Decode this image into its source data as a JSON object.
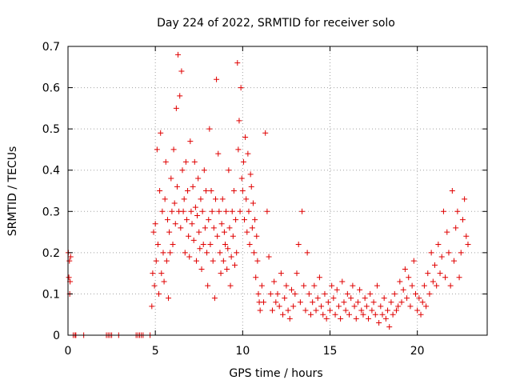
{
  "chart_data": {
    "type": "scatter",
    "title": "Day 224 of 2022, SRMTID for receiver solo",
    "xlabel": "GPS time / hours",
    "ylabel": "SRMTID / TECUs",
    "xlim": [
      0,
      24
    ],
    "ylim": [
      0,
      0.7
    ],
    "xticks": [
      0,
      5,
      10,
      15,
      20
    ],
    "xtick_labels": [
      "0",
      "5",
      "10",
      "15",
      "20"
    ],
    "yticks": [
      0,
      0.1,
      0.2,
      0.3,
      0.4,
      0.5,
      0.6,
      0.7
    ],
    "ytick_labels": [
      "0",
      "0.1",
      "0.2",
      "0.3",
      "0.4",
      "0.5",
      "0.6",
      "0.7"
    ],
    "grid": true,
    "marker": "plus",
    "color": "#e00000",
    "series": [
      {
        "name": "SRMTID",
        "x": [
          0.02,
          0.05,
          0.08,
          0.1,
          0.12,
          0.15,
          0.3,
          0.4,
          0.45,
          0.9,
          2.2,
          2.3,
          2.4,
          2.5,
          2.9,
          3.9,
          4.0,
          4.1,
          4.2,
          4.3,
          4.7,
          4.8,
          4.85,
          4.9,
          4.95,
          5.0,
          5.05,
          5.1,
          5.15,
          5.2,
          5.25,
          5.3,
          5.35,
          5.4,
          5.45,
          5.5,
          5.55,
          5.6,
          5.65,
          5.7,
          5.75,
          5.8,
          5.85,
          5.9,
          5.95,
          6.0,
          6.05,
          6.1,
          6.15,
          6.2,
          6.25,
          6.3,
          6.35,
          6.4,
          6.45,
          6.5,
          6.55,
          6.6,
          6.65,
          6.7,
          6.75,
          6.8,
          6.85,
          6.9,
          6.95,
          7.0,
          7.05,
          7.1,
          7.15,
          7.2,
          7.25,
          7.3,
          7.35,
          7.4,
          7.45,
          7.5,
          7.55,
          7.6,
          7.65,
          7.7,
          7.75,
          7.8,
          7.85,
          7.9,
          7.95,
          8.0,
          8.05,
          8.1,
          8.15,
          8.2,
          8.25,
          8.3,
          8.35,
          8.4,
          8.45,
          8.5,
          8.55,
          8.6,
          8.65,
          8.7,
          8.75,
          8.8,
          8.85,
          8.9,
          8.95,
          9.0,
          9.05,
          9.1,
          9.15,
          9.2,
          9.25,
          9.3,
          9.35,
          9.4,
          9.45,
          9.5,
          9.55,
          9.6,
          9.65,
          9.7,
          9.75,
          9.8,
          9.85,
          9.9,
          9.95,
          10.0,
          10.05,
          10.1,
          10.15,
          10.2,
          10.25,
          10.3,
          10.35,
          10.4,
          10.45,
          10.5,
          10.55,
          10.6,
          10.65,
          10.7,
          10.75,
          10.8,
          10.85,
          10.9,
          10.95,
          11.0,
          11.1,
          11.2,
          11.3,
          11.4,
          11.5,
          11.6,
          11.7,
          11.8,
          11.9,
          12.0,
          12.1,
          12.2,
          12.3,
          12.4,
          12.5,
          12.6,
          12.7,
          12.8,
          12.9,
          13.0,
          13.1,
          13.2,
          13.3,
          13.4,
          13.5,
          13.6,
          13.7,
          13.8,
          13.9,
          14.0,
          14.1,
          14.2,
          14.3,
          14.4,
          14.5,
          14.6,
          14.7,
          14.8,
          14.9,
          15.0,
          15.1,
          15.2,
          15.3,
          15.4,
          15.5,
          15.6,
          15.7,
          15.8,
          15.9,
          16.0,
          16.1,
          16.2,
          16.3,
          16.4,
          16.5,
          16.6,
          16.7,
          16.8,
          16.9,
          17.0,
          17.1,
          17.2,
          17.3,
          17.4,
          17.5,
          17.6,
          17.7,
          17.8,
          17.9,
          18.0,
          18.1,
          18.2,
          18.3,
          18.4,
          18.5,
          18.6,
          18.7,
          18.8,
          18.9,
          19.0,
          19.1,
          19.2,
          19.3,
          19.4,
          19.5,
          19.6,
          19.7,
          19.8,
          19.9,
          20.0,
          20.1,
          20.2,
          20.3,
          20.4,
          20.5,
          20.6,
          20.7,
          20.8,
          20.9,
          21.0,
          21.1,
          21.2,
          21.3,
          21.4,
          21.5,
          21.6,
          21.7,
          21.8,
          21.9,
          22.0,
          22.1,
          22.2,
          22.3,
          22.4,
          22.5,
          22.6,
          22.7,
          22.8,
          22.9
        ],
        "y": [
          0.2,
          0.14,
          0.18,
          0.1,
          0.13,
          0.19,
          0.0,
          0.0,
          0.0,
          0.0,
          0.0,
          0.0,
          0.0,
          0.0,
          0.0,
          0.0,
          0.0,
          0.0,
          0.0,
          0.0,
          0.0,
          0.07,
          0.15,
          0.25,
          0.12,
          0.27,
          0.18,
          0.45,
          0.22,
          0.1,
          0.35,
          0.49,
          0.15,
          0.3,
          0.2,
          0.13,
          0.33,
          0.42,
          0.18,
          0.28,
          0.09,
          0.25,
          0.2,
          0.38,
          0.3,
          0.22,
          0.45,
          0.32,
          0.27,
          0.55,
          0.36,
          0.68,
          0.3,
          0.58,
          0.26,
          0.64,
          0.4,
          0.3,
          0.33,
          0.2,
          0.42,
          0.28,
          0.35,
          0.24,
          0.19,
          0.47,
          0.3,
          0.27,
          0.36,
          0.23,
          0.42,
          0.31,
          0.18,
          0.29,
          0.38,
          0.25,
          0.21,
          0.33,
          0.16,
          0.3,
          0.22,
          0.4,
          0.26,
          0.35,
          0.2,
          0.12,
          0.28,
          0.5,
          0.22,
          0.35,
          0.3,
          0.18,
          0.26,
          0.09,
          0.33,
          0.62,
          0.24,
          0.44,
          0.3,
          0.2,
          0.15,
          0.27,
          0.33,
          0.18,
          0.25,
          0.22,
          0.3,
          0.16,
          0.21,
          0.4,
          0.26,
          0.12,
          0.19,
          0.3,
          0.24,
          0.35,
          0.17,
          0.28,
          0.2,
          0.66,
          0.45,
          0.52,
          0.3,
          0.6,
          0.38,
          0.35,
          0.42,
          0.28,
          0.48,
          0.33,
          0.25,
          0.44,
          0.3,
          0.22,
          0.39,
          0.36,
          0.26,
          0.32,
          0.2,
          0.28,
          0.14,
          0.24,
          0.18,
          0.1,
          0.08,
          0.06,
          0.12,
          0.08,
          0.49,
          0.3,
          0.19,
          0.1,
          0.06,
          0.13,
          0.08,
          0.1,
          0.07,
          0.15,
          0.05,
          0.09,
          0.12,
          0.06,
          0.04,
          0.11,
          0.07,
          0.1,
          0.15,
          0.22,
          0.08,
          0.3,
          0.12,
          0.06,
          0.2,
          0.1,
          0.05,
          0.08,
          0.12,
          0.06,
          0.09,
          0.14,
          0.07,
          0.05,
          0.1,
          0.04,
          0.08,
          0.06,
          0.12,
          0.09,
          0.05,
          0.11,
          0.07,
          0.04,
          0.13,
          0.08,
          0.06,
          0.1,
          0.05,
          0.09,
          0.12,
          0.07,
          0.04,
          0.08,
          0.11,
          0.06,
          0.05,
          0.09,
          0.07,
          0.04,
          0.1,
          0.06,
          0.08,
          0.05,
          0.12,
          0.03,
          0.07,
          0.05,
          0.09,
          0.04,
          0.06,
          0.02,
          0.08,
          0.05,
          0.1,
          0.06,
          0.07,
          0.13,
          0.08,
          0.11,
          0.16,
          0.09,
          0.14,
          0.07,
          0.12,
          0.18,
          0.1,
          0.06,
          0.09,
          0.05,
          0.08,
          0.12,
          0.07,
          0.15,
          0.1,
          0.2,
          0.13,
          0.17,
          0.12,
          0.22,
          0.15,
          0.19,
          0.3,
          0.14,
          0.25,
          0.2,
          0.12,
          0.35,
          0.18,
          0.26,
          0.3,
          0.14,
          0.2,
          0.28,
          0.33,
          0.24,
          0.22
        ]
      }
    ]
  }
}
